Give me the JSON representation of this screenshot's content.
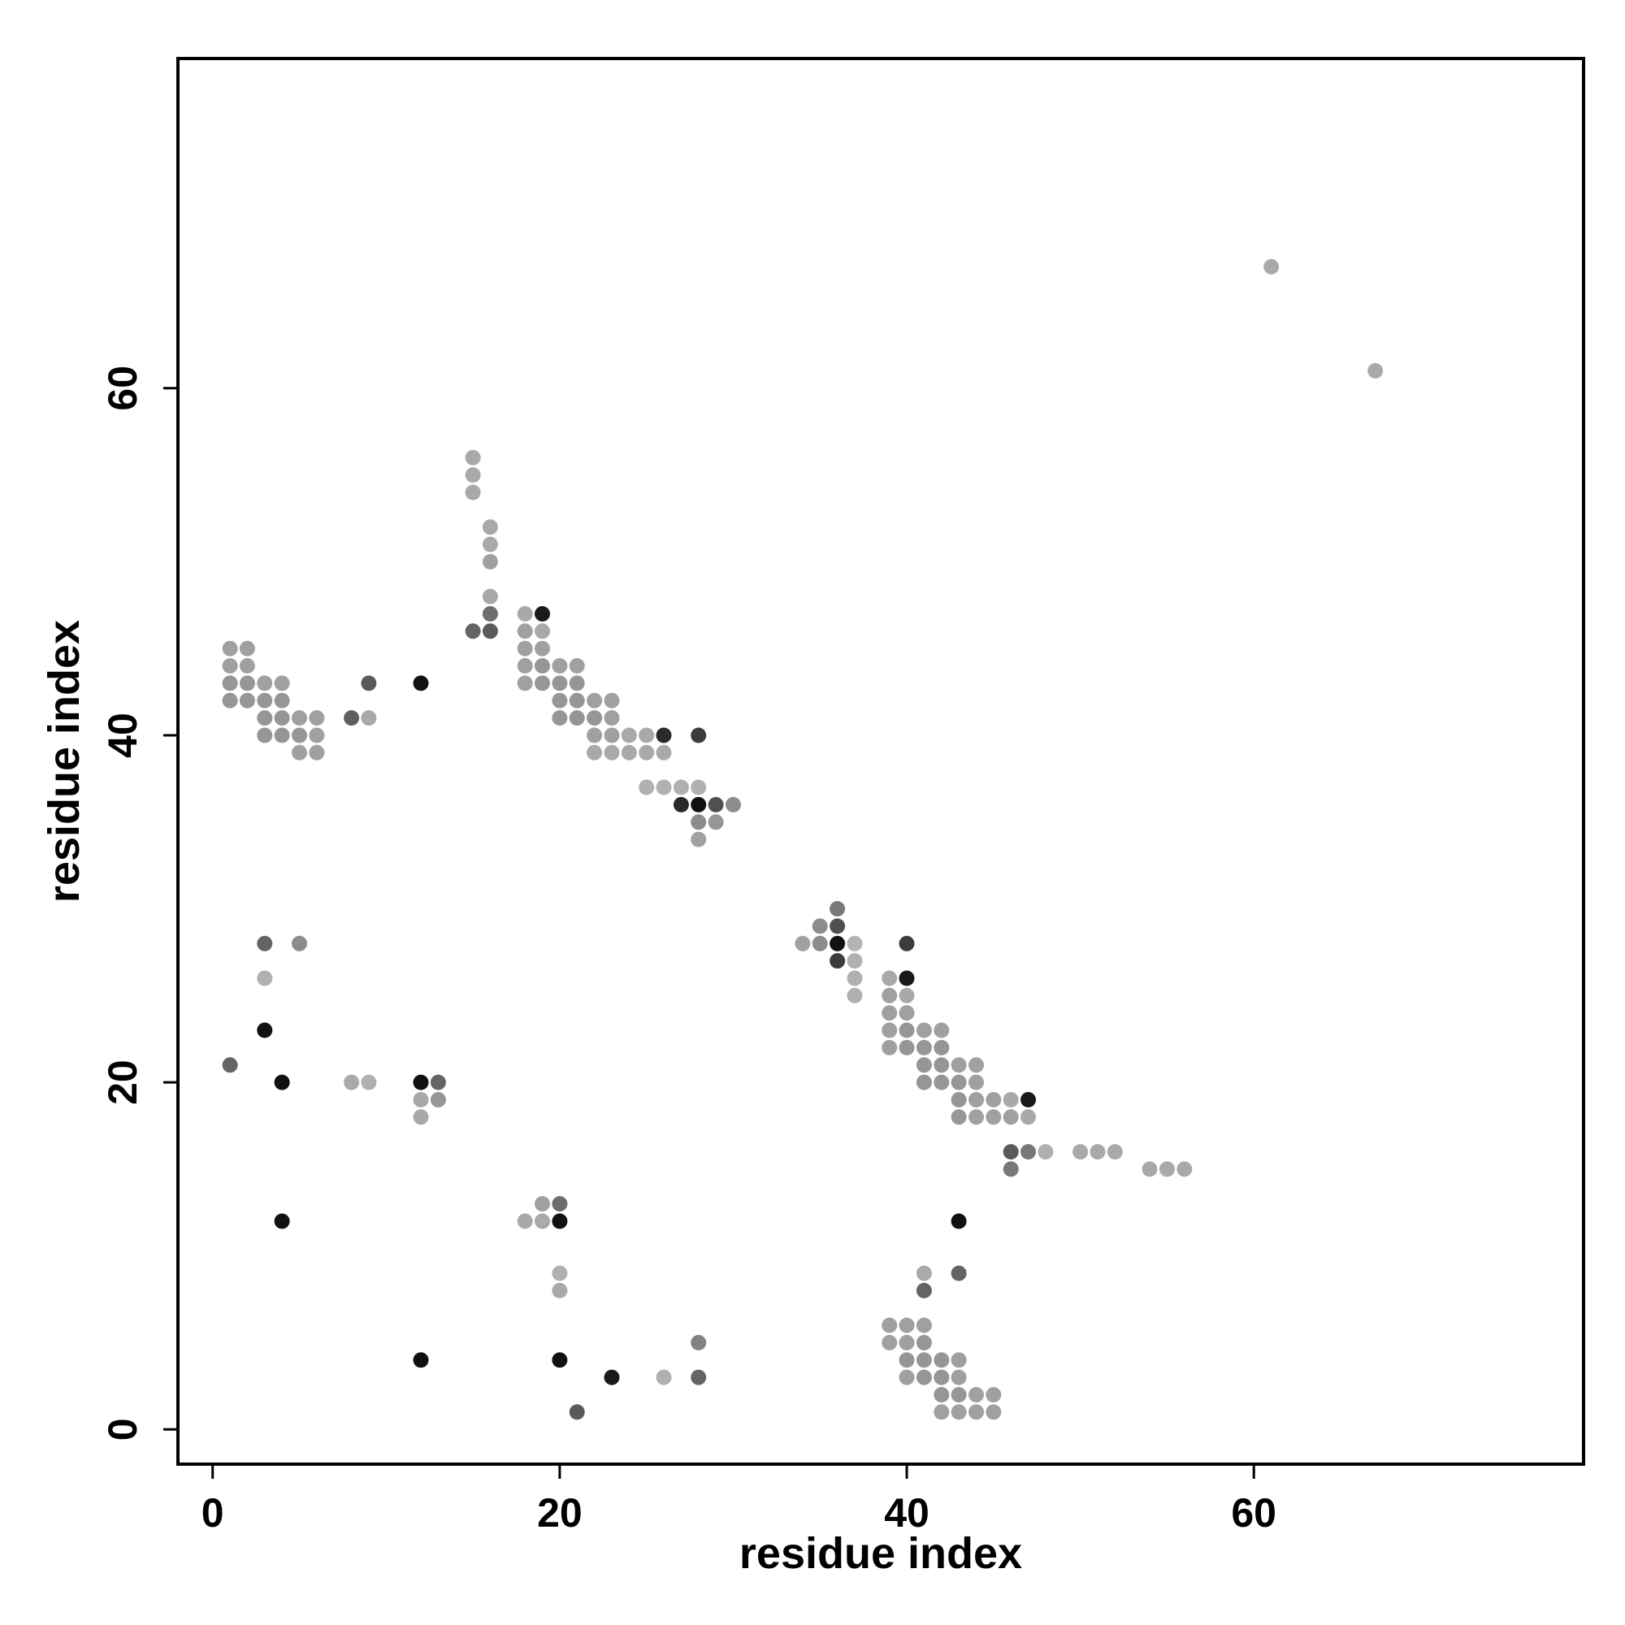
{
  "chart_data": {
    "type": "scatter",
    "title": "",
    "xlabel": "residue index",
    "ylabel": "residue index",
    "xlim": [
      -2,
      79
    ],
    "ylim": [
      -2,
      79
    ],
    "xticks": [
      0,
      20,
      40,
      60
    ],
    "yticks": [
      0,
      20,
      40,
      60
    ],
    "grid": false,
    "legend": "none",
    "point_color_scale": "grayscale, darker = stronger",
    "points": [
      {
        "x": 1,
        "y": 45,
        "c": "#a0a0a0"
      },
      {
        "x": 1,
        "y": 44,
        "c": "#a0a0a0"
      },
      {
        "x": 1,
        "y": 43,
        "c": "#969696"
      },
      {
        "x": 1,
        "y": 42,
        "c": "#969696"
      },
      {
        "x": 2,
        "y": 45,
        "c": "#a0a0a0"
      },
      {
        "x": 2,
        "y": 44,
        "c": "#a0a0a0"
      },
      {
        "x": 2,
        "y": 43,
        "c": "#969696"
      },
      {
        "x": 2,
        "y": 42,
        "c": "#969696"
      },
      {
        "x": 3,
        "y": 43,
        "c": "#a0a0a0"
      },
      {
        "x": 3,
        "y": 42,
        "c": "#969696"
      },
      {
        "x": 3,
        "y": 41,
        "c": "#969696"
      },
      {
        "x": 3,
        "y": 40,
        "c": "#969696"
      },
      {
        "x": 4,
        "y": 43,
        "c": "#a0a0a0"
      },
      {
        "x": 4,
        "y": 42,
        "c": "#969696"
      },
      {
        "x": 4,
        "y": 41,
        "c": "#969696"
      },
      {
        "x": 4,
        "y": 40,
        "c": "#969696"
      },
      {
        "x": 5,
        "y": 41,
        "c": "#a0a0a0"
      },
      {
        "x": 5,
        "y": 40,
        "c": "#969696"
      },
      {
        "x": 5,
        "y": 39,
        "c": "#a0a0a0"
      },
      {
        "x": 6,
        "y": 41,
        "c": "#a0a0a0"
      },
      {
        "x": 6,
        "y": 40,
        "c": "#a0a0a0"
      },
      {
        "x": 6,
        "y": 39,
        "c": "#a0a0a0"
      },
      {
        "x": 8,
        "y": 41,
        "c": "#5f5f5f"
      },
      {
        "x": 9,
        "y": 41,
        "c": "#a9a9a9"
      },
      {
        "x": 9,
        "y": 43,
        "c": "#5a5a5a"
      },
      {
        "x": 12,
        "y": 43,
        "c": "#111111"
      },
      {
        "x": 15,
        "y": 56,
        "c": "#a9a9a9"
      },
      {
        "x": 15,
        "y": 55,
        "c": "#a9a9a9"
      },
      {
        "x": 15,
        "y": 54,
        "c": "#a9a9a9"
      },
      {
        "x": 15,
        "y": 46,
        "c": "#646464"
      },
      {
        "x": 16,
        "y": 52,
        "c": "#a9a9a9"
      },
      {
        "x": 16,
        "y": 51,
        "c": "#a9a9a9"
      },
      {
        "x": 16,
        "y": 50,
        "c": "#a0a0a0"
      },
      {
        "x": 16,
        "y": 48,
        "c": "#a9a9a9"
      },
      {
        "x": 16,
        "y": 47,
        "c": "#6e6e6e"
      },
      {
        "x": 16,
        "y": 46,
        "c": "#5a5a5a"
      },
      {
        "x": 18,
        "y": 47,
        "c": "#a9a9a9"
      },
      {
        "x": 18,
        "y": 46,
        "c": "#a0a0a0"
      },
      {
        "x": 18,
        "y": 45,
        "c": "#a0a0a0"
      },
      {
        "x": 18,
        "y": 44,
        "c": "#a0a0a0"
      },
      {
        "x": 18,
        "y": 43,
        "c": "#a0a0a0"
      },
      {
        "x": 19,
        "y": 47,
        "c": "#1a1a1a"
      },
      {
        "x": 19,
        "y": 46,
        "c": "#a9a9a9"
      },
      {
        "x": 19,
        "y": 45,
        "c": "#a0a0a0"
      },
      {
        "x": 19,
        "y": 44,
        "c": "#969696"
      },
      {
        "x": 19,
        "y": 43,
        "c": "#969696"
      },
      {
        "x": 20,
        "y": 44,
        "c": "#a0a0a0"
      },
      {
        "x": 20,
        "y": 43,
        "c": "#969696"
      },
      {
        "x": 20,
        "y": 42,
        "c": "#969696"
      },
      {
        "x": 20,
        "y": 41,
        "c": "#969696"
      },
      {
        "x": 21,
        "y": 44,
        "c": "#a0a0a0"
      },
      {
        "x": 21,
        "y": 43,
        "c": "#969696"
      },
      {
        "x": 21,
        "y": 42,
        "c": "#969696"
      },
      {
        "x": 21,
        "y": 41,
        "c": "#969696"
      },
      {
        "x": 22,
        "y": 42,
        "c": "#a0a0a0"
      },
      {
        "x": 22,
        "y": 41,
        "c": "#969696"
      },
      {
        "x": 22,
        "y": 40,
        "c": "#a0a0a0"
      },
      {
        "x": 22,
        "y": 39,
        "c": "#a9a9a9"
      },
      {
        "x": 23,
        "y": 42,
        "c": "#a0a0a0"
      },
      {
        "x": 23,
        "y": 41,
        "c": "#a0a0a0"
      },
      {
        "x": 23,
        "y": 40,
        "c": "#a0a0a0"
      },
      {
        "x": 23,
        "y": 39,
        "c": "#a9a9a9"
      },
      {
        "x": 24,
        "y": 40,
        "c": "#a9a9a9"
      },
      {
        "x": 24,
        "y": 39,
        "c": "#a9a9a9"
      },
      {
        "x": 25,
        "y": 40,
        "c": "#a9a9a9"
      },
      {
        "x": 25,
        "y": 39,
        "c": "#a9a9a9"
      },
      {
        "x": 25,
        "y": 37,
        "c": "#b0b0b0"
      },
      {
        "x": 26,
        "y": 40,
        "c": "#2a2a2a"
      },
      {
        "x": 26,
        "y": 39,
        "c": "#a9a9a9"
      },
      {
        "x": 26,
        "y": 37,
        "c": "#b0b0b0"
      },
      {
        "x": 27,
        "y": 37,
        "c": "#b0b0b0"
      },
      {
        "x": 27,
        "y": 36,
        "c": "#2a2a2a"
      },
      {
        "x": 28,
        "y": 40,
        "c": "#3c3c3c"
      },
      {
        "x": 28,
        "y": 37,
        "c": "#b0b0b0"
      },
      {
        "x": 28,
        "y": 36,
        "c": "#111111"
      },
      {
        "x": 28,
        "y": 35,
        "c": "#8c8c8c"
      },
      {
        "x": 28,
        "y": 34,
        "c": "#a0a0a0"
      },
      {
        "x": 29,
        "y": 36,
        "c": "#505050"
      },
      {
        "x": 29,
        "y": 35,
        "c": "#969696"
      },
      {
        "x": 30,
        "y": 36,
        "c": "#8c8c8c"
      },
      {
        "x": 61,
        "y": 67,
        "c": "#a9a9a9"
      },
      {
        "x": 67,
        "y": 61,
        "c": "#a9a9a9"
      },
      {
        "x": 34,
        "y": 28,
        "c": "#a0a0a0"
      },
      {
        "x": 35,
        "y": 29,
        "c": "#8c8c8c"
      },
      {
        "x": 35,
        "y": 28,
        "c": "#8c8c8c"
      },
      {
        "x": 36,
        "y": 30,
        "c": "#787878"
      },
      {
        "x": 36,
        "y": 29,
        "c": "#505050"
      },
      {
        "x": 36,
        "y": 28,
        "c": "#111111"
      },
      {
        "x": 36,
        "y": 27,
        "c": "#3c3c3c"
      },
      {
        "x": 37,
        "y": 28,
        "c": "#b4b4b4"
      },
      {
        "x": 37,
        "y": 27,
        "c": "#b0b0b0"
      },
      {
        "x": 37,
        "y": 26,
        "c": "#b0b0b0"
      },
      {
        "x": 37,
        "y": 25,
        "c": "#b0b0b0"
      },
      {
        "x": 39,
        "y": 26,
        "c": "#a9a9a9"
      },
      {
        "x": 39,
        "y": 25,
        "c": "#a0a0a0"
      },
      {
        "x": 39,
        "y": 24,
        "c": "#a0a0a0"
      },
      {
        "x": 39,
        "y": 23,
        "c": "#a0a0a0"
      },
      {
        "x": 39,
        "y": 22,
        "c": "#a0a0a0"
      },
      {
        "x": 40,
        "y": 28,
        "c": "#3c3c3c"
      },
      {
        "x": 40,
        "y": 26,
        "c": "#1a1a1a"
      },
      {
        "x": 40,
        "y": 25,
        "c": "#a9a9a9"
      },
      {
        "x": 40,
        "y": 24,
        "c": "#a0a0a0"
      },
      {
        "x": 40,
        "y": 23,
        "c": "#969696"
      },
      {
        "x": 40,
        "y": 22,
        "c": "#969696"
      },
      {
        "x": 41,
        "y": 23,
        "c": "#a0a0a0"
      },
      {
        "x": 41,
        "y": 22,
        "c": "#969696"
      },
      {
        "x": 41,
        "y": 21,
        "c": "#969696"
      },
      {
        "x": 41,
        "y": 20,
        "c": "#969696"
      },
      {
        "x": 42,
        "y": 23,
        "c": "#a0a0a0"
      },
      {
        "x": 42,
        "y": 22,
        "c": "#969696"
      },
      {
        "x": 42,
        "y": 21,
        "c": "#969696"
      },
      {
        "x": 42,
        "y": 20,
        "c": "#969696"
      },
      {
        "x": 43,
        "y": 21,
        "c": "#a0a0a0"
      },
      {
        "x": 43,
        "y": 20,
        "c": "#969696"
      },
      {
        "x": 43,
        "y": 19,
        "c": "#969696"
      },
      {
        "x": 43,
        "y": 18,
        "c": "#969696"
      },
      {
        "x": 44,
        "y": 21,
        "c": "#a0a0a0"
      },
      {
        "x": 44,
        "y": 20,
        "c": "#a0a0a0"
      },
      {
        "x": 44,
        "y": 19,
        "c": "#a0a0a0"
      },
      {
        "x": 44,
        "y": 18,
        "c": "#a0a0a0"
      },
      {
        "x": 45,
        "y": 19,
        "c": "#a0a0a0"
      },
      {
        "x": 45,
        "y": 18,
        "c": "#a0a0a0"
      },
      {
        "x": 46,
        "y": 19,
        "c": "#a9a9a9"
      },
      {
        "x": 46,
        "y": 18,
        "c": "#a0a0a0"
      },
      {
        "x": 46,
        "y": 16,
        "c": "#5a5a5a"
      },
      {
        "x": 46,
        "y": 15,
        "c": "#787878"
      },
      {
        "x": 47,
        "y": 19,
        "c": "#1a1a1a"
      },
      {
        "x": 47,
        "y": 18,
        "c": "#a9a9a9"
      },
      {
        "x": 47,
        "y": 16,
        "c": "#787878"
      },
      {
        "x": 48,
        "y": 16,
        "c": "#b0b0b0"
      },
      {
        "x": 50,
        "y": 16,
        "c": "#a9a9a9"
      },
      {
        "x": 51,
        "y": 16,
        "c": "#a9a9a9"
      },
      {
        "x": 52,
        "y": 16,
        "c": "#a9a9a9"
      },
      {
        "x": 54,
        "y": 15,
        "c": "#a9a9a9"
      },
      {
        "x": 55,
        "y": 15,
        "c": "#a9a9a9"
      },
      {
        "x": 56,
        "y": 15,
        "c": "#a9a9a9"
      },
      {
        "x": 3,
        "y": 28,
        "c": "#646464"
      },
      {
        "x": 5,
        "y": 28,
        "c": "#8c8c8c"
      },
      {
        "x": 3,
        "y": 26,
        "c": "#b0b0b0"
      },
      {
        "x": 3,
        "y": 23,
        "c": "#111111"
      },
      {
        "x": 1,
        "y": 21,
        "c": "#646464"
      },
      {
        "x": 4,
        "y": 20,
        "c": "#111111"
      },
      {
        "x": 8,
        "y": 20,
        "c": "#a9a9a9"
      },
      {
        "x": 9,
        "y": 20,
        "c": "#b0b0b0"
      },
      {
        "x": 12,
        "y": 20,
        "c": "#111111"
      },
      {
        "x": 13,
        "y": 20,
        "c": "#646464"
      },
      {
        "x": 12,
        "y": 19,
        "c": "#a9a9a9"
      },
      {
        "x": 13,
        "y": 19,
        "c": "#969696"
      },
      {
        "x": 12,
        "y": 18,
        "c": "#a9a9a9"
      },
      {
        "x": 4,
        "y": 12,
        "c": "#111111"
      },
      {
        "x": 18,
        "y": 12,
        "c": "#a9a9a9"
      },
      {
        "x": 19,
        "y": 13,
        "c": "#a0a0a0"
      },
      {
        "x": 19,
        "y": 12,
        "c": "#a9a9a9"
      },
      {
        "x": 20,
        "y": 13,
        "c": "#6e6e6e"
      },
      {
        "x": 20,
        "y": 12,
        "c": "#111111"
      },
      {
        "x": 20,
        "y": 9,
        "c": "#b0b0b0"
      },
      {
        "x": 20,
        "y": 8,
        "c": "#a9a9a9"
      },
      {
        "x": 12,
        "y": 4,
        "c": "#111111"
      },
      {
        "x": 20,
        "y": 4,
        "c": "#111111"
      },
      {
        "x": 21,
        "y": 1,
        "c": "#5a5a5a"
      },
      {
        "x": 23,
        "y": 3,
        "c": "#1a1a1a"
      },
      {
        "x": 26,
        "y": 3,
        "c": "#b0b0b0"
      },
      {
        "x": 28,
        "y": 5,
        "c": "#828282"
      },
      {
        "x": 28,
        "y": 3,
        "c": "#646464"
      },
      {
        "x": 41,
        "y": 9,
        "c": "#a9a9a9"
      },
      {
        "x": 41,
        "y": 8,
        "c": "#646464"
      },
      {
        "x": 43,
        "y": 12,
        "c": "#111111"
      },
      {
        "x": 43,
        "y": 9,
        "c": "#646464"
      },
      {
        "x": 39,
        "y": 6,
        "c": "#a0a0a0"
      },
      {
        "x": 39,
        "y": 5,
        "c": "#a0a0a0"
      },
      {
        "x": 40,
        "y": 6,
        "c": "#a0a0a0"
      },
      {
        "x": 40,
        "y": 5,
        "c": "#a0a0a0"
      },
      {
        "x": 40,
        "y": 4,
        "c": "#969696"
      },
      {
        "x": 40,
        "y": 3,
        "c": "#a0a0a0"
      },
      {
        "x": 41,
        "y": 6,
        "c": "#a0a0a0"
      },
      {
        "x": 41,
        "y": 5,
        "c": "#969696"
      },
      {
        "x": 41,
        "y": 4,
        "c": "#969696"
      },
      {
        "x": 41,
        "y": 3,
        "c": "#969696"
      },
      {
        "x": 42,
        "y": 4,
        "c": "#969696"
      },
      {
        "x": 42,
        "y": 3,
        "c": "#969696"
      },
      {
        "x": 42,
        "y": 2,
        "c": "#969696"
      },
      {
        "x": 42,
        "y": 1,
        "c": "#a0a0a0"
      },
      {
        "x": 43,
        "y": 4,
        "c": "#a0a0a0"
      },
      {
        "x": 43,
        "y": 3,
        "c": "#a0a0a0"
      },
      {
        "x": 43,
        "y": 2,
        "c": "#969696"
      },
      {
        "x": 43,
        "y": 1,
        "c": "#a0a0a0"
      },
      {
        "x": 44,
        "y": 2,
        "c": "#a0a0a0"
      },
      {
        "x": 44,
        "y": 1,
        "c": "#a0a0a0"
      },
      {
        "x": 45,
        "y": 2,
        "c": "#a0a0a0"
      },
      {
        "x": 45,
        "y": 1,
        "c": "#a0a0a0"
      }
    ]
  }
}
